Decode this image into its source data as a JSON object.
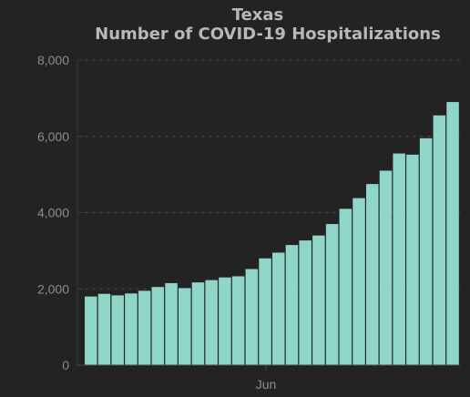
{
  "chart_data": {
    "type": "bar",
    "title": "Texas",
    "subtitle": "Number of COVID-19 Hospitalizations",
    "xlabel": "",
    "ylabel": "",
    "x_tick_labels": [
      "Jun"
    ],
    "y_ticks": [
      "0",
      "2,000",
      "4,000",
      "6,000",
      "8,000"
    ],
    "ylim": [
      0,
      8000
    ],
    "grid": "horizontal dashed",
    "values": [
      1800,
      1870,
      1830,
      1880,
      1950,
      2050,
      2150,
      2020,
      2170,
      2230,
      2300,
      2330,
      2520,
      2800,
      2950,
      3150,
      3270,
      3400,
      3700,
      4100,
      4380,
      4750,
      5100,
      5550,
      5520,
      5950,
      6550,
      6900
    ],
    "colors": {
      "bar": "#8fd6c8",
      "background": "#232323",
      "text": "#b8b8b8",
      "tick": "#8c8c8c",
      "grid": "#4a4a4a"
    }
  }
}
